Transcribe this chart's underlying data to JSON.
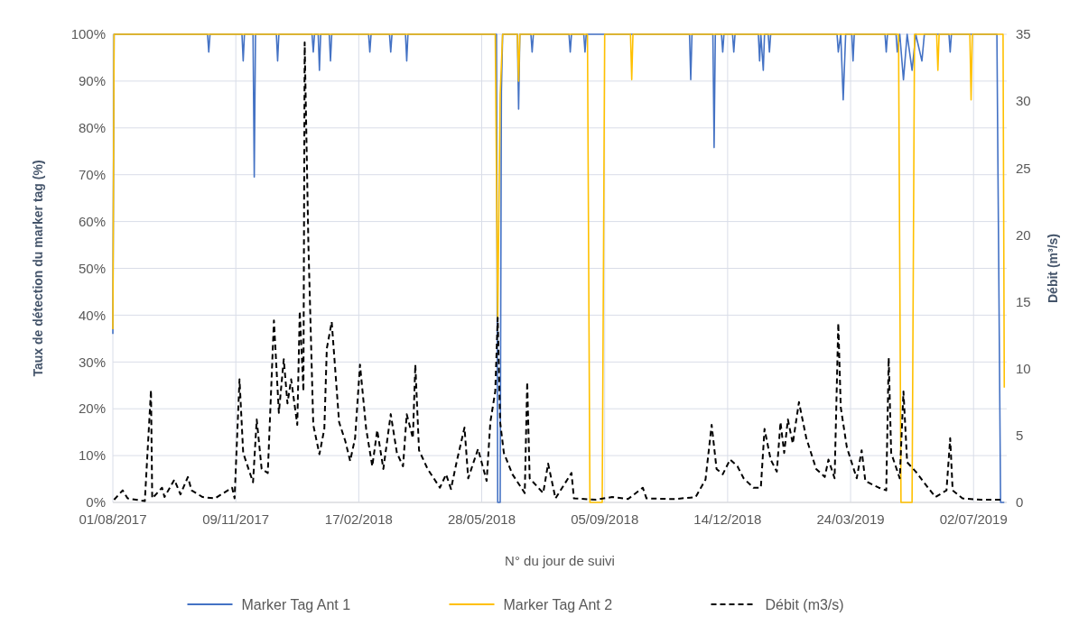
{
  "chart_data": {
    "type": "line",
    "xlabel": "N° du jour de suivi",
    "ylabel": "Taux de détection du marker tag (%)",
    "y2label": "Débit (m³/s)",
    "xlim": [
      "2017-08-01",
      "2019-07-29"
    ],
    "xticks": [
      {
        "value": "2017-08-01",
        "label": "01/08/2017"
      },
      {
        "value": "2017-11-09",
        "label": "09/11/2017"
      },
      {
        "value": "2018-02-17",
        "label": "17/02/2018"
      },
      {
        "value": "2018-05-28",
        "label": "28/05/2018"
      },
      {
        "value": "2018-09-05",
        "label": "05/09/2018"
      },
      {
        "value": "2018-12-14",
        "label": "14/12/2018"
      },
      {
        "value": "2019-03-24",
        "label": "24/03/2019"
      },
      {
        "value": "2019-07-02",
        "label": "02/07/2019"
      }
    ],
    "ylim": [
      0,
      100
    ],
    "yticks": [
      {
        "value": 0,
        "label": "0%"
      },
      {
        "value": 10,
        "label": "10%"
      },
      {
        "value": 20,
        "label": "20%"
      },
      {
        "value": 30,
        "label": "30%"
      },
      {
        "value": 40,
        "label": "40%"
      },
      {
        "value": 50,
        "label": "50%"
      },
      {
        "value": 60,
        "label": "60%"
      },
      {
        "value": 70,
        "label": "70%"
      },
      {
        "value": 80,
        "label": "80%"
      },
      {
        "value": 90,
        "label": "90%"
      },
      {
        "value": 100,
        "label": "100%"
      }
    ],
    "y2lim": [
      0,
      35
    ],
    "y2ticks": [
      0,
      5,
      10,
      15,
      20,
      25,
      30,
      35
    ],
    "grid": true,
    "legend": "bottom",
    "marker": "none",
    "series": [
      {
        "name": "Marker Tag Ant 1",
        "color": "#4472c4",
        "line_style": "solid",
        "x": [
          "2017-08-01",
          "2017-08-02",
          "2017-10-17",
          "2017-10-18",
          "2017-10-19",
          "2017-11-14",
          "2017-11-15",
          "2017-11-16",
          "2017-11-23",
          "2017-11-24",
          "2017-11-25",
          "2017-12-12",
          "2017-12-13",
          "2017-12-14",
          "2018-01-10",
          "2018-01-11",
          "2018-01-12",
          "2018-01-15",
          "2018-01-16",
          "2018-01-17",
          "2018-01-24",
          "2018-01-25",
          "2018-01-26",
          "2018-02-25",
          "2018-02-26",
          "2018-02-27",
          "2018-03-14",
          "2018-03-15",
          "2018-03-16",
          "2018-03-27",
          "2018-03-28",
          "2018-03-29",
          "2018-06-09",
          "2018-06-10",
          "2018-06-12",
          "2018-06-13",
          "2018-06-14",
          "2018-06-26",
          "2018-06-27",
          "2018-06-28",
          "2018-07-07",
          "2018-07-08",
          "2018-07-09",
          "2018-08-07",
          "2018-08-08",
          "2018-08-09",
          "2018-08-19",
          "2018-08-20",
          "2018-08-21",
          "2018-11-13",
          "2018-11-14",
          "2018-11-15",
          "2018-12-02",
          "2018-12-03",
          "2018-12-04",
          "2018-12-09",
          "2018-12-10",
          "2018-12-11",
          "2018-12-18",
          "2018-12-19",
          "2018-12-20",
          "2019-01-08",
          "2019-01-09",
          "2019-01-10",
          "2019-01-12",
          "2019-01-13",
          "2019-01-16",
          "2019-01-17",
          "2019-01-18",
          "2019-03-13",
          "2019-03-14",
          "2019-03-16",
          "2019-03-18",
          "2019-03-20",
          "2019-03-25",
          "2019-03-26",
          "2019-03-27",
          "2019-04-21",
          "2019-04-22",
          "2019-04-23",
          "2019-04-30",
          "2019-05-01",
          "2019-05-03",
          "2019-05-06",
          "2019-05-09",
          "2019-05-13",
          "2019-05-16",
          "2019-05-21",
          "2019-05-23",
          "2019-06-12",
          "2019-06-13",
          "2019-06-14",
          "2019-07-21",
          "2019-07-24",
          "2019-07-27"
        ],
        "values": [
          36,
          100,
          100,
          96.2,
          100,
          100,
          94.3,
          100,
          100,
          69.5,
          100,
          100,
          94.3,
          100,
          100,
          96.2,
          100,
          100,
          92.3,
          100,
          100,
          94.3,
          100,
          100,
          96.2,
          100,
          100,
          96.2,
          100,
          100,
          94.3,
          100,
          100,
          0,
          0,
          87.7,
          100,
          100,
          84,
          100,
          100,
          96.2,
          100,
          100,
          96.2,
          100,
          100,
          96.2,
          100,
          100,
          90.3,
          100,
          100,
          75.8,
          100,
          100,
          96.2,
          100,
          100,
          96.2,
          100,
          100,
          94.3,
          100,
          92.3,
          100,
          100,
          96.2,
          100,
          100,
          96.2,
          100,
          86,
          100,
          100,
          94.3,
          100,
          100,
          96.2,
          100,
          100,
          96.2,
          100,
          90.3,
          100,
          92.3,
          100,
          94.3,
          100,
          100,
          96.2,
          100,
          100,
          0,
          0
        ]
      },
      {
        "name": "Marker Tag Ant 2",
        "color": "#ffc000",
        "line_style": "solid",
        "x": [
          "2017-08-01",
          "2017-08-02",
          "2018-06-08",
          "2018-06-10",
          "2018-06-12",
          "2018-06-14",
          "2018-06-26",
          "2018-06-27",
          "2018-06-28",
          "2018-08-22",
          "2018-08-24",
          "2018-09-03",
          "2018-09-05",
          "2018-09-26",
          "2018-09-27",
          "2018-09-28",
          "2019-05-02",
          "2019-05-04",
          "2019-05-13",
          "2019-05-15",
          "2019-06-02",
          "2019-06-03",
          "2019-06-04",
          "2019-06-29",
          "2019-06-30",
          "2019-07-01",
          "2019-07-26",
          "2019-07-27"
        ],
        "values": [
          37,
          100,
          100,
          39,
          87,
          100,
          100,
          90,
          100,
          100,
          0,
          0,
          100,
          100,
          90.3,
          100,
          100,
          0,
          0,
          100,
          100,
          92.3,
          100,
          100,
          86,
          100,
          100,
          24.5
        ]
      },
      {
        "name": "Débit (m3/s)",
        "color": "#000000",
        "axis": "y2",
        "line_style": "dashed",
        "x": [
          "2017-08-02",
          "2017-08-09",
          "2017-08-13",
          "2017-08-27",
          "2017-09-01",
          "2017-09-02",
          "2017-09-10",
          "2017-09-12",
          "2017-09-20",
          "2017-09-25",
          "2017-10-01",
          "2017-10-04",
          "2017-10-13",
          "2017-10-23",
          "2017-11-06",
          "2017-11-08",
          "2017-11-12",
          "2017-11-15",
          "2017-11-23",
          "2017-11-26",
          "2017-11-30",
          "2017-12-05",
          "2017-12-10",
          "2017-12-14",
          "2017-12-18",
          "2017-12-21",
          "2017-12-24",
          "2017-12-29",
          "2017-12-31",
          "2018-01-03",
          "2018-01-04",
          "2018-01-07",
          "2018-01-11",
          "2018-01-16",
          "2018-01-20",
          "2018-01-22",
          "2018-01-26",
          "2018-02-01",
          "2018-02-06",
          "2018-02-10",
          "2018-02-14",
          "2018-02-18",
          "2018-02-23",
          "2018-02-28",
          "2018-03-04",
          "2018-03-09",
          "2018-03-15",
          "2018-03-20",
          "2018-03-25",
          "2018-03-28",
          "2018-04-02",
          "2018-04-04",
          "2018-04-07",
          "2018-04-14",
          "2018-04-24",
          "2018-04-29",
          "2018-05-03",
          "2018-05-08",
          "2018-05-14",
          "2018-05-17",
          "2018-05-25",
          "2018-06-01",
          "2018-06-04",
          "2018-06-08",
          "2018-06-10",
          "2018-06-12",
          "2018-06-15",
          "2018-06-22",
          "2018-07-02",
          "2018-07-04",
          "2018-07-06",
          "2018-07-17",
          "2018-07-21",
          "2018-07-27",
          "2018-08-09",
          "2018-08-11",
          "2018-08-29",
          "2018-09-11",
          "2018-09-24",
          "2018-10-06",
          "2018-10-09",
          "2018-11-01",
          "2018-11-18",
          "2018-11-26",
          "2018-12-01",
          "2018-12-05",
          "2018-12-10",
          "2018-12-16",
          "2018-12-22",
          "2018-12-27",
          "2019-01-04",
          "2019-01-10",
          "2019-01-13",
          "2019-01-18",
          "2019-01-23",
          "2019-01-26",
          "2019-01-29",
          "2019-02-01",
          "2019-02-05",
          "2019-02-10",
          "2019-02-16",
          "2019-02-24",
          "2019-03-03",
          "2019-03-06",
          "2019-03-11",
          "2019-03-14",
          "2019-03-16",
          "2019-03-21",
          "2019-03-29",
          "2019-04-02",
          "2019-04-05",
          "2019-04-16",
          "2019-04-22",
          "2019-04-24",
          "2019-04-26",
          "2019-05-03",
          "2019-05-06",
          "2019-05-09",
          "2019-05-16",
          "2019-05-26",
          "2019-06-01",
          "2019-06-10",
          "2019-06-13",
          "2019-06-15",
          "2019-06-23",
          "2019-07-08",
          "2019-07-26"
        ],
        "values": [
          0.2,
          0.9,
          0.3,
          0.1,
          8.4,
          0.3,
          1.1,
          0.4,
          1.7,
          0.6,
          1.9,
          0.9,
          0.4,
          0.3,
          1.1,
          0.3,
          9.2,
          3.7,
          1.5,
          6.2,
          2.5,
          2.2,
          13.6,
          6.7,
          10.7,
          7.4,
          9.2,
          5.8,
          14.3,
          8.3,
          34.4,
          19.4,
          5.8,
          3.6,
          5.5,
          11.5,
          13.5,
          6,
          4.6,
          3.1,
          4.8,
          10.3,
          5.5,
          2.7,
          5.4,
          2.5,
          6.6,
          3.7,
          2.7,
          6.6,
          4.8,
          10.3,
          3.9,
          2.5,
          1.1,
          2.1,
          1,
          3.2,
          5.6,
          1.8,
          4,
          1.6,
          6,
          8.3,
          13.8,
          6,
          3.7,
          2.1,
          0.7,
          9,
          1.8,
          0.7,
          2.9,
          0.3,
          2.2,
          0.3,
          0.2,
          0.4,
          0.25,
          1.1,
          0.3,
          0.25,
          0.4,
          1.7,
          5.8,
          2.5,
          2.1,
          3.2,
          2.7,
          1.8,
          1.1,
          1.1,
          5.5,
          3.2,
          2.3,
          6,
          3.7,
          6.2,
          4.4,
          7.5,
          4.8,
          2.5,
          1.9,
          3.2,
          1.8,
          13.4,
          7.1,
          4.1,
          1.8,
          3.9,
          1.6,
          1.1,
          0.9,
          10.8,
          3.7,
          1.8,
          8.3,
          3,
          2.3,
          1.1,
          0.4,
          0.9,
          4.8,
          0.9,
          0.3,
          0.2,
          0.2
        ]
      }
    ]
  }
}
